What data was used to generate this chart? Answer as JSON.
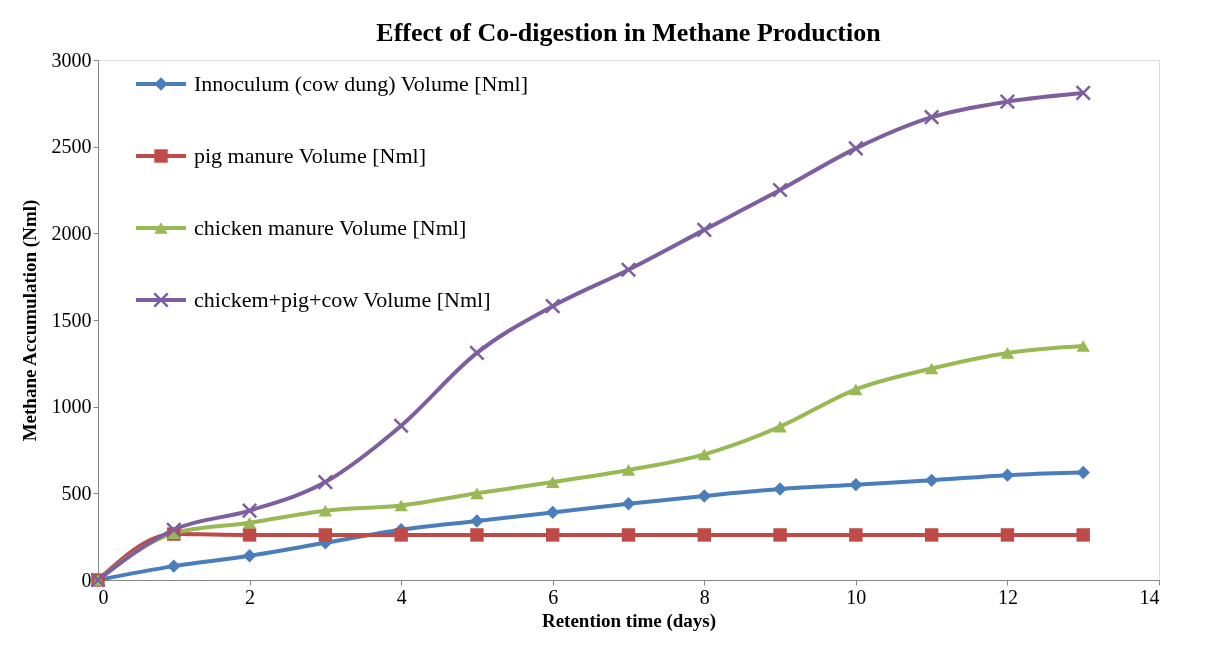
{
  "chart_data": {
    "type": "line",
    "title": "Effect of Co-digestion in Methane Production",
    "xlabel": "Retention time (days)",
    "ylabel": "Methane Accumulation (Nml)",
    "x": [
      0,
      1,
      2,
      3,
      4,
      5,
      6,
      7,
      8,
      9,
      10,
      11,
      12,
      13
    ],
    "series": [
      {
        "name": "Innoculum (cow dung) Volume [Nml]",
        "color": "#4a7ebb",
        "marker": "diamond",
        "values": [
          0,
          80,
          140,
          215,
          290,
          340,
          390,
          440,
          485,
          525,
          550,
          575,
          605,
          620
        ]
      },
      {
        "name": "pig manure Volume [Nml]",
        "color": "#be4b48",
        "marker": "square",
        "values": [
          0,
          265,
          260,
          260,
          260,
          260,
          260,
          260,
          260,
          260,
          260,
          260,
          260,
          260
        ]
      },
      {
        "name": "chicken manure Volume [Nml]",
        "color": "#98b954",
        "marker": "triangle",
        "values": [
          0,
          270,
          330,
          400,
          430,
          500,
          565,
          635,
          725,
          885,
          1100,
          1220,
          1310,
          1350
        ]
      },
      {
        "name": "chickem+pig+cow Volume [Nml]",
        "color": "#7d5fa0",
        "marker": "cross",
        "values": [
          0,
          290,
          400,
          565,
          890,
          1310,
          1580,
          1790,
          2020,
          2250,
          2490,
          2670,
          2760,
          2810
        ]
      }
    ],
    "xlim": [
      0,
      14
    ],
    "xticks": [
      0,
      2,
      4,
      6,
      8,
      10,
      12,
      14
    ],
    "ylim": [
      0,
      3000
    ],
    "yticks": [
      0,
      500,
      1000,
      1500,
      2000,
      2500,
      3000
    ],
    "grid": false,
    "legend": "top left",
    "line_style": "solid"
  }
}
